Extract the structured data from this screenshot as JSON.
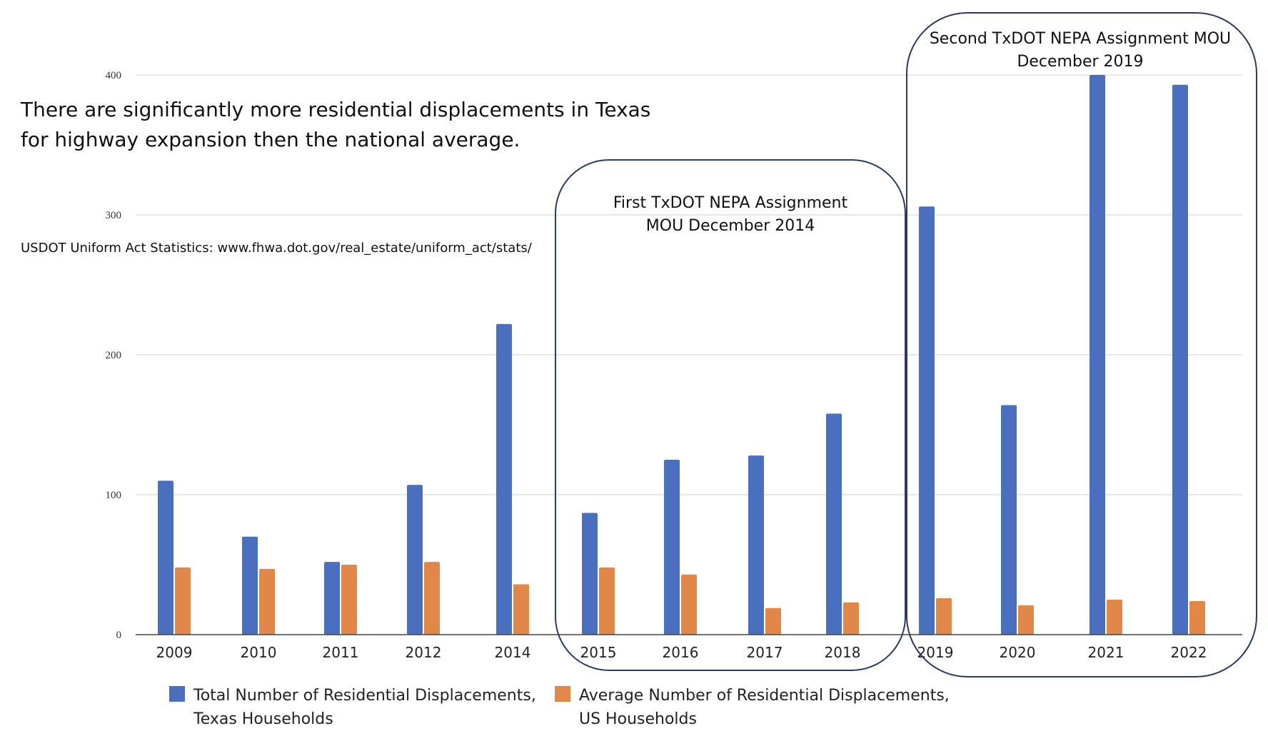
{
  "chart_data": {
    "type": "bar",
    "title": "",
    "xlabel": "",
    "ylabel": "",
    "ylim": [
      0,
      400
    ],
    "yticks": [
      "0",
      "100",
      "200",
      "300",
      "400"
    ],
    "grid": true,
    "legend_position": "bottom-left",
    "categories": [
      "2009",
      "2010",
      "2011",
      "2012",
      "2014",
      "2015",
      "2016",
      "2017",
      "2018",
      "2019",
      "2020",
      "2021",
      "2022"
    ],
    "series": [
      {
        "name": "Total Number of Residential Displacements, Texas Households",
        "legend_lines": [
          "Total Number of Residential Displacements,",
          "Texas Households"
        ],
        "color": "#4a6fbf",
        "values": [
          110,
          70,
          52,
          107,
          222,
          87,
          125,
          128,
          158,
          306,
          164,
          400,
          393
        ]
      },
      {
        "name": "Average Number of Residential Displacements, US Households",
        "legend_lines": [
          "Average Number of Residential Displacements,",
          "US Households"
        ],
        "color": "#e2874a",
        "values": [
          48,
          47,
          50,
          52,
          36,
          48,
          43,
          19,
          23,
          26,
          21,
          25,
          24
        ]
      }
    ]
  },
  "headline": {
    "line1": "There are significantly more residential displacements in Texas",
    "line2": "for highway expansion then the national average."
  },
  "source_text": "USDOT Uniform Act Statistics:  www.fhwa.dot.gov/real_estate/uniform_act/stats/",
  "annotations": {
    "first_box": {
      "line1": "First TxDOT NEPA Assignment",
      "line2": "MOU December 2014",
      "color": "#2b3b63"
    },
    "second_box": {
      "line1": "Second TxDOT NEPA Assignment MOU",
      "line2": "December 2019",
      "color": "#2b3b63"
    }
  },
  "colors": {
    "grid": "#d9d9d9",
    "axis": "#444444"
  }
}
